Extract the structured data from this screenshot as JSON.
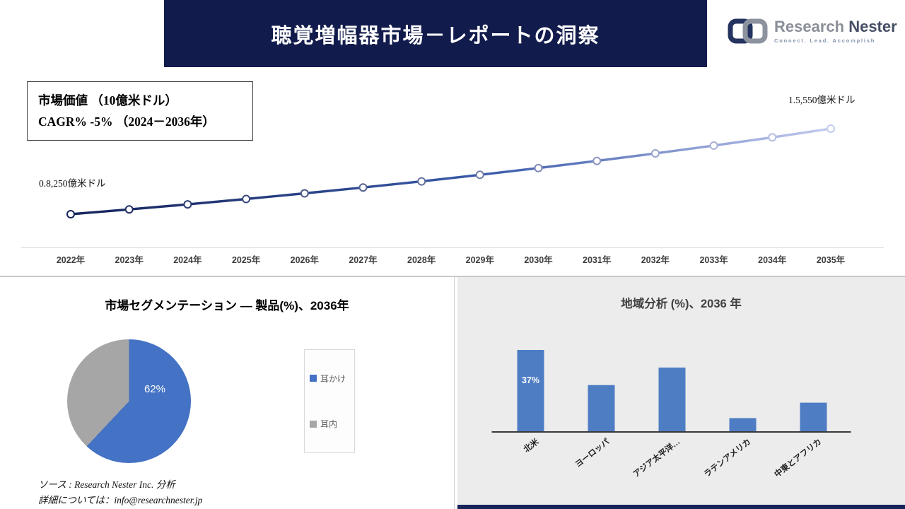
{
  "header": {
    "title": "聴覚増幅器市場－レポートの洞察",
    "logo": {
      "brand_gray": "Research",
      "brand_dark": "Nester",
      "tagline": "Connect. Lead. Accomplish"
    }
  },
  "source": {
    "line1": "ソース : Research Nester Inc. 分析",
    "line2": "詳細については：info@researchnester.jp"
  },
  "colors": {
    "banner_navy": "#121c4c",
    "accent_blue": "#4472c4",
    "neutral_gray": "#a6a6a6",
    "panel_gray": "#ececec"
  },
  "chart_data": [
    {
      "type": "line",
      "title": "市場価値 （10億米ドル）",
      "subtitle": "CAGR% -5% （2024－2036年）",
      "x": [
        "2022年",
        "2023年",
        "2024年",
        "2025年",
        "2026年",
        "2027年",
        "2028年",
        "2029年",
        "2030年",
        "2031年",
        "2032年",
        "2033年",
        "2034年",
        "2035年"
      ],
      "values": [
        0.825,
        0.866,
        0.909,
        0.955,
        1.003,
        1.053,
        1.105,
        1.161,
        1.219,
        1.28,
        1.344,
        1.411,
        1.481,
        1.555
      ],
      "start_label": "0.8,250億米ドル",
      "end_label": "1.5,550億米ドル",
      "grid": false,
      "legend_position": "none",
      "color_start": "#14235a",
      "color_mid": "#3c5cab",
      "color_end": "#c3cbef"
    },
    {
      "type": "pie",
      "title": "市場セグメンテーション ― 製品(%)、2036年",
      "start_angle": "top",
      "direction": "clockwise",
      "inside_label": "62%",
      "slices": [
        {
          "label": "耳かけ",
          "value": 62,
          "color": "#4472c4"
        },
        {
          "label": "耳内",
          "value": 38,
          "color": "#a6a6a6"
        }
      ]
    },
    {
      "type": "bar",
      "title": "地域分析 (%)、2036 年",
      "categories": [
        "北米",
        "ヨーロッパ",
        "アジア太平洋…",
        "ラテンアメリカ",
        "中東とアフリカ"
      ],
      "values": [
        37,
        21,
        29,
        6,
        13
      ],
      "bar_color": "#4e7dc4",
      "annotated_label": "37%",
      "grid": false,
      "legend_position": "none"
    }
  ]
}
